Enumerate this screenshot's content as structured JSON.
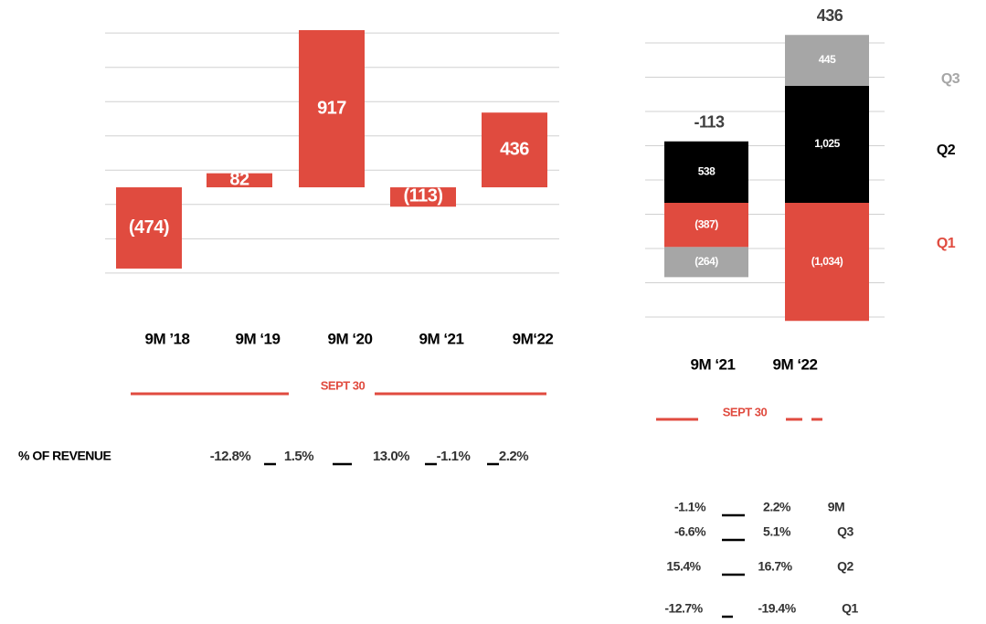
{
  "chart_data": [
    {
      "type": "bar",
      "categories": [
        "9M ’18",
        "9M ‘19",
        "9M ‘20",
        "9M ‘21",
        "9M‘22"
      ],
      "values": [
        -474,
        82,
        917,
        -113,
        436
      ],
      "value_labels": [
        "(474)",
        "82",
        "917",
        "(113)",
        "436"
      ],
      "color": "#e04b3f",
      "ylim": [
        -600,
        950
      ],
      "yticks": [
        -500,
        -300,
        -100,
        100,
        300,
        500,
        700,
        900
      ],
      "grid": true,
      "annotation": "SEPT 30",
      "revenue_share": {
        "label": "% OF REVENUE",
        "values": [
          "-12.8%",
          "1.5%",
          "13.0%",
          "-1.1%",
          "2.2%"
        ]
      }
    },
    {
      "type": "stacked_bar",
      "categories": [
        "9M ‘21",
        "9M ‘22"
      ],
      "series": [
        {
          "name": "Q1",
          "color": "#e04b3f",
          "values": [
            -387,
            -1034
          ],
          "value_labels": [
            "(387)",
            "(1,034)"
          ]
        },
        {
          "name": "Q2",
          "color": "#000000",
          "values": [
            538,
            1025
          ],
          "value_labels": [
            "538",
            "1,025"
          ]
        },
        {
          "name": "Q3",
          "color": "#a6a6a6",
          "values": [
            -264,
            445
          ],
          "value_labels": [
            "(264)",
            "445"
          ]
        }
      ],
      "totals": [
        -113,
        436
      ],
      "ylim": [
        -1100,
        1500
      ],
      "yticks": [
        -1000,
        -700,
        -400,
        -100,
        200,
        500,
        800,
        1100,
        1400
      ],
      "grid": true,
      "annotation": "SEPT 30",
      "revenue_share": {
        "rows": [
          [
            "-1.1%",
            "2.2%",
            "9M"
          ],
          [
            "-6.6%",
            "5.1%",
            "Q3"
          ],
          [
            "15.4%",
            "16.7%",
            "Q2"
          ],
          [
            "-12.7%",
            "-19.4%",
            "Q1"
          ]
        ]
      }
    }
  ]
}
